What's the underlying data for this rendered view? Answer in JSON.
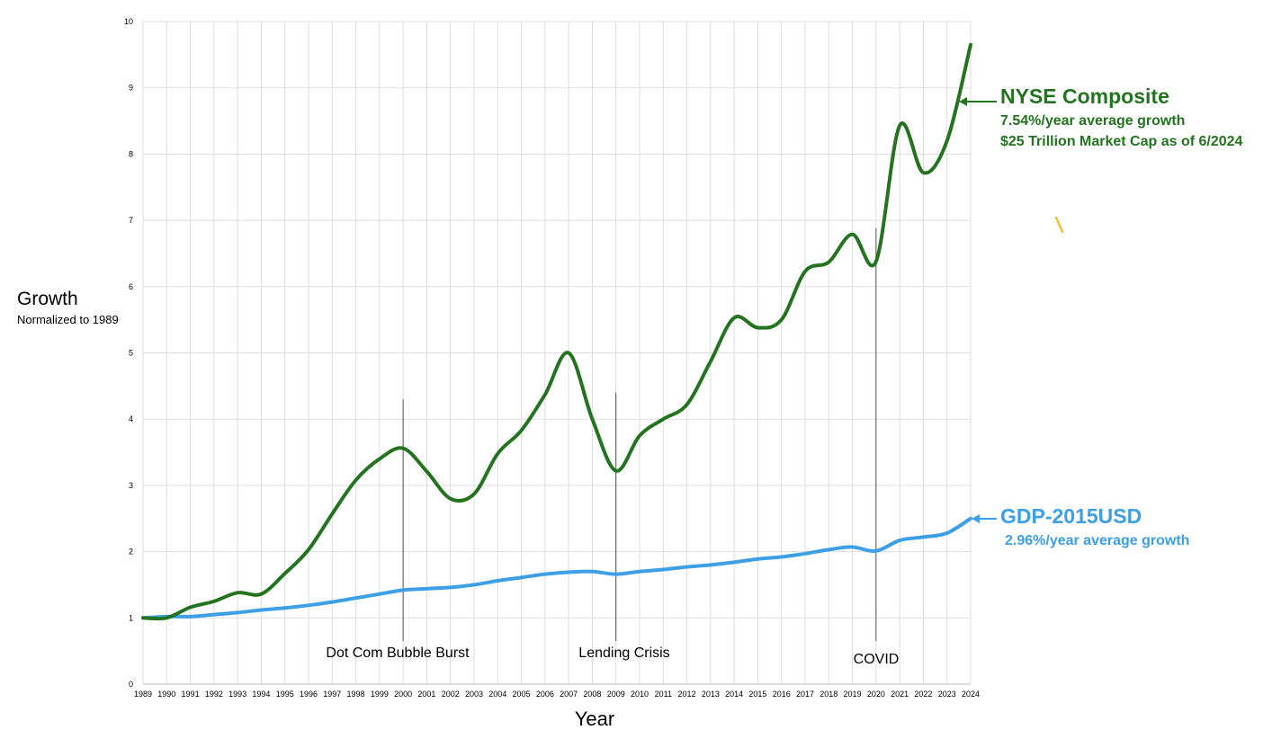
{
  "chart_data": {
    "type": "line",
    "title": "",
    "xlabel": "Year",
    "ylabel": "Growth",
    "ylabel_sub": "Normalized to 1989",
    "x": [
      1989,
      1990,
      1991,
      1992,
      1993,
      1994,
      1995,
      1996,
      1997,
      1998,
      1999,
      2000,
      2001,
      2002,
      2003,
      2004,
      2005,
      2006,
      2007,
      2008,
      2009,
      2010,
      2011,
      2012,
      2013,
      2014,
      2015,
      2016,
      2017,
      2018,
      2019,
      2020,
      2021,
      2022,
      2023,
      2024
    ],
    "xlim": [
      1989,
      2024
    ],
    "ylim": [
      0,
      10
    ],
    "y_ticks": [
      0,
      1,
      2,
      3,
      4,
      5,
      6,
      7,
      8,
      9,
      10
    ],
    "grid": true,
    "series": [
      {
        "name": "NYSE Composite",
        "color": "#23731f",
        "values": [
          1.0,
          1.0,
          1.16,
          1.25,
          1.38,
          1.36,
          1.67,
          2.03,
          2.57,
          3.08,
          3.4,
          3.56,
          3.21,
          2.8,
          2.87,
          3.48,
          3.83,
          4.37,
          5.0,
          4.0,
          3.22,
          3.75,
          4.0,
          4.22,
          4.87,
          5.53,
          5.38,
          5.5,
          6.23,
          6.37,
          6.79,
          6.38,
          8.43,
          7.72,
          8.2,
          9.65
        ]
      },
      {
        "name": "GDP-2015USD",
        "color": "#3d9fe6",
        "values": [
          1.0,
          1.02,
          1.02,
          1.05,
          1.08,
          1.12,
          1.15,
          1.19,
          1.24,
          1.3,
          1.36,
          1.42,
          1.44,
          1.46,
          1.5,
          1.56,
          1.61,
          1.66,
          1.69,
          1.7,
          1.66,
          1.7,
          1.73,
          1.77,
          1.8,
          1.84,
          1.89,
          1.92,
          1.97,
          2.03,
          2.07,
          2.01,
          2.17,
          2.22,
          2.28,
          2.5
        ]
      }
    ],
    "annotations": {
      "nyse": {
        "title": "NYSE Composite",
        "line1": "7.54%/year average growth",
        "line2": "$25 Trillion Market Cap  as of 6/2024"
      },
      "gdp": {
        "title": "GDP-2015USD",
        "line1": "2.96%/year average growth"
      }
    },
    "events": [
      {
        "label": "Dot Com Bubble Burst",
        "year": 2000,
        "line_top": 4.3
      },
      {
        "label": "Lending Crisis",
        "year": 2009,
        "line_top": 4.4
      },
      {
        "label": "COVID",
        "year": 2020,
        "line_top": 6.88
      }
    ]
  }
}
